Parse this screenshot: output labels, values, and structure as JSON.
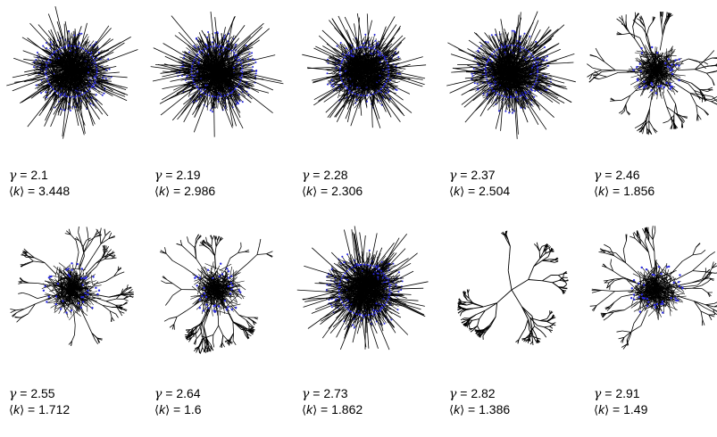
{
  "figure": {
    "gamma_symbol": "γ",
    "k_left": "⟨",
    "k_var": "k",
    "k_right": "⟩",
    "equals": " = ",
    "edge_color": "#000000",
    "node_color": "#2a2ae0",
    "panels": [
      {
        "gamma": "2.1",
        "k": "3.448",
        "seed": 11,
        "layout": "hairball",
        "spread": 0.5
      },
      {
        "gamma": "2.19",
        "k": "2.986",
        "seed": 23,
        "layout": "hairball",
        "spread": 0.5
      },
      {
        "gamma": "2.28",
        "k": "2.306",
        "seed": 37,
        "layout": "hairball",
        "spread": 0.42
      },
      {
        "gamma": "2.37",
        "k": "2.504",
        "seed": 41,
        "layout": "hairball",
        "spread": 0.55
      },
      {
        "gamma": "2.46",
        "k": "1.856",
        "seed": 53,
        "layout": "branchy",
        "spread": 0.45
      },
      {
        "gamma": "2.55",
        "k": "1.712",
        "seed": 67,
        "layout": "branchy",
        "spread": 0.48
      },
      {
        "gamma": "2.64",
        "k": "1.6",
        "seed": 71,
        "layout": "branchy",
        "spread": 0.4
      },
      {
        "gamma": "2.73",
        "k": "1.862",
        "seed": 83,
        "layout": "hairball",
        "spread": 0.5
      },
      {
        "gamma": "2.82",
        "k": "1.386",
        "seed": 97,
        "layout": "tree",
        "spread": 0.5
      },
      {
        "gamma": "2.91",
        "k": "1.49",
        "seed": 13,
        "layout": "branchy",
        "spread": 0.5
      }
    ]
  }
}
